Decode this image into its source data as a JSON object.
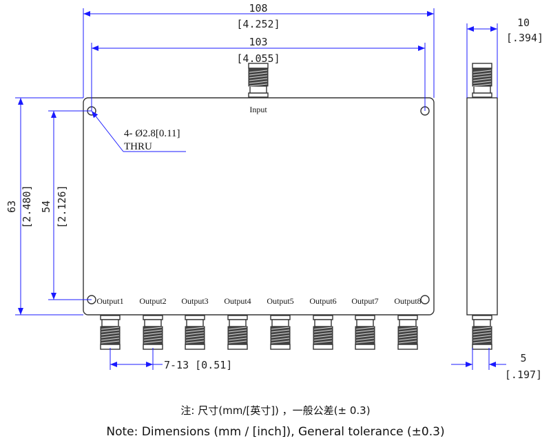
{
  "dimensions": {
    "overall_width": {
      "mm": "108",
      "inch": "[4.252]"
    },
    "hole_spacing_width": {
      "mm": "103",
      "inch": "[4.055]"
    },
    "overall_height": {
      "mm": "63",
      "inch": "[2.480]"
    },
    "hole_spacing_height": {
      "mm": "54",
      "inch": "[2.126]"
    },
    "thickness": {
      "mm": "10",
      "inch": "[.394]"
    },
    "connector_offset": {
      "mm": "5",
      "inch": "[.197]"
    },
    "connector_pitch": "7-13  [0.51]",
    "holes": {
      "line1": "4- Ø2.8[0.11]",
      "line2": "THRU"
    }
  },
  "ports": {
    "input": "Input",
    "outputs": [
      "Output1",
      "Output2",
      "Output3",
      "Output4",
      "Output5",
      "Output6",
      "Output7",
      "Output8"
    ]
  },
  "notes": {
    "chinese": "注:  尺寸(mm/[英寸])  ，一般公差(±  0.3)",
    "english": "Note: Dimensions (mm / [inch]), General tolerance (±0.3)"
  },
  "colors": {
    "dimension_line": "#1a1aff",
    "outline": "#333333"
  }
}
